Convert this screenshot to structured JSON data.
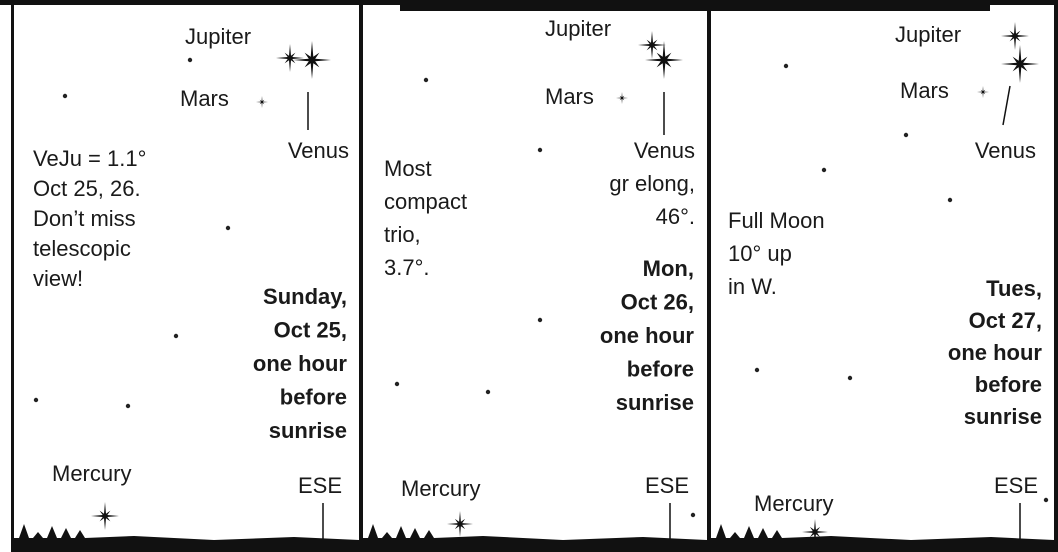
{
  "panels": [
    {
      "jupiter": "Jupiter",
      "mars": "Mars",
      "venus": [
        "Venus"
      ],
      "note": [
        "VeJu = 1.1°",
        "Oct 25, 26.",
        "Don’t miss",
        "telescopic",
        "view!"
      ],
      "date": [
        "Sunday,",
        "Oct 25,",
        "one hour",
        "before",
        "sunrise"
      ],
      "mercury": "Mercury",
      "direction": "ESE"
    },
    {
      "jupiter": "Jupiter",
      "mars": "Mars",
      "venus": [
        "Venus",
        "gr elong,",
        "46°."
      ],
      "note": [
        "Most",
        "compact",
        "trio,",
        "3.7°."
      ],
      "date": [
        "Mon,",
        "Oct 26,",
        "one hour",
        "before",
        "sunrise"
      ],
      "mercury": "Mercury",
      "direction": "ESE"
    },
    {
      "jupiter": "Jupiter",
      "mars": "Mars",
      "venus": [
        "Venus"
      ],
      "note": [
        "Full Moon",
        "10° up",
        "in W."
      ],
      "date": [
        "Tues,",
        "Oct 27,",
        "one hour",
        "before",
        "sunrise"
      ],
      "mercury": "Mercury",
      "direction": "ESE"
    }
  ]
}
